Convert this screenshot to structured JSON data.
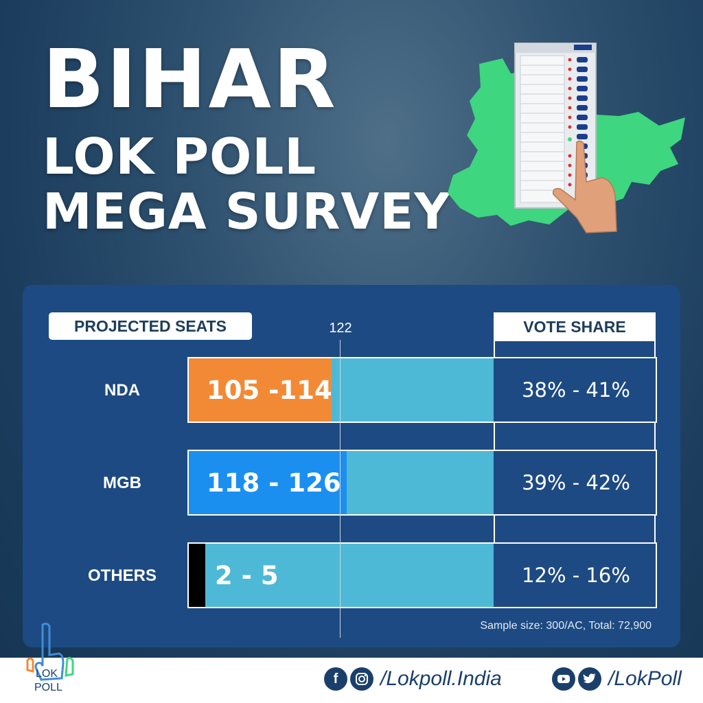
{
  "header": {
    "line1": "BIHAR",
    "line2": "LOK POLL",
    "line3": "MEGA SURVEY"
  },
  "chart_data": {
    "type": "bar",
    "orientation": "horizontal",
    "header_left": "PROJECTED SEATS",
    "header_right": "VOTE SHARE",
    "majority_marker": "122",
    "xlim": [
      0,
      243
    ],
    "categories": [
      "NDA",
      "MGB",
      "OTHERS"
    ],
    "series": [
      {
        "name": "Projected Seats",
        "ranges": [
          [
            105,
            114
          ],
          [
            118,
            126
          ],
          [
            2,
            5
          ]
        ],
        "labels": [
          "105 -114",
          "118 - 126",
          "2 - 5"
        ],
        "colors": [
          "#f28a35",
          "#1b8ff0",
          "#000000"
        ]
      }
    ],
    "vote_share": [
      "38% - 41%",
      "39% - 42%",
      "12% - 16%"
    ],
    "note": "Sample size: 300/AC, Total: 72,900"
  },
  "footer": {
    "logo_text_top": "LOK",
    "logo_text_bottom": "POLL",
    "handle_1": "/Lokpoll.India",
    "handle_2": "/LokPoll",
    "icons": [
      "facebook-icon",
      "instagram-icon",
      "youtube-icon",
      "twitter-icon"
    ]
  },
  "colors": {
    "panel": "#1d4a82",
    "bar_background": "#4eb9d6",
    "nda": "#f28a35",
    "mgb": "#1b8ff0",
    "others": "#000000",
    "map": "#3ed67f"
  }
}
